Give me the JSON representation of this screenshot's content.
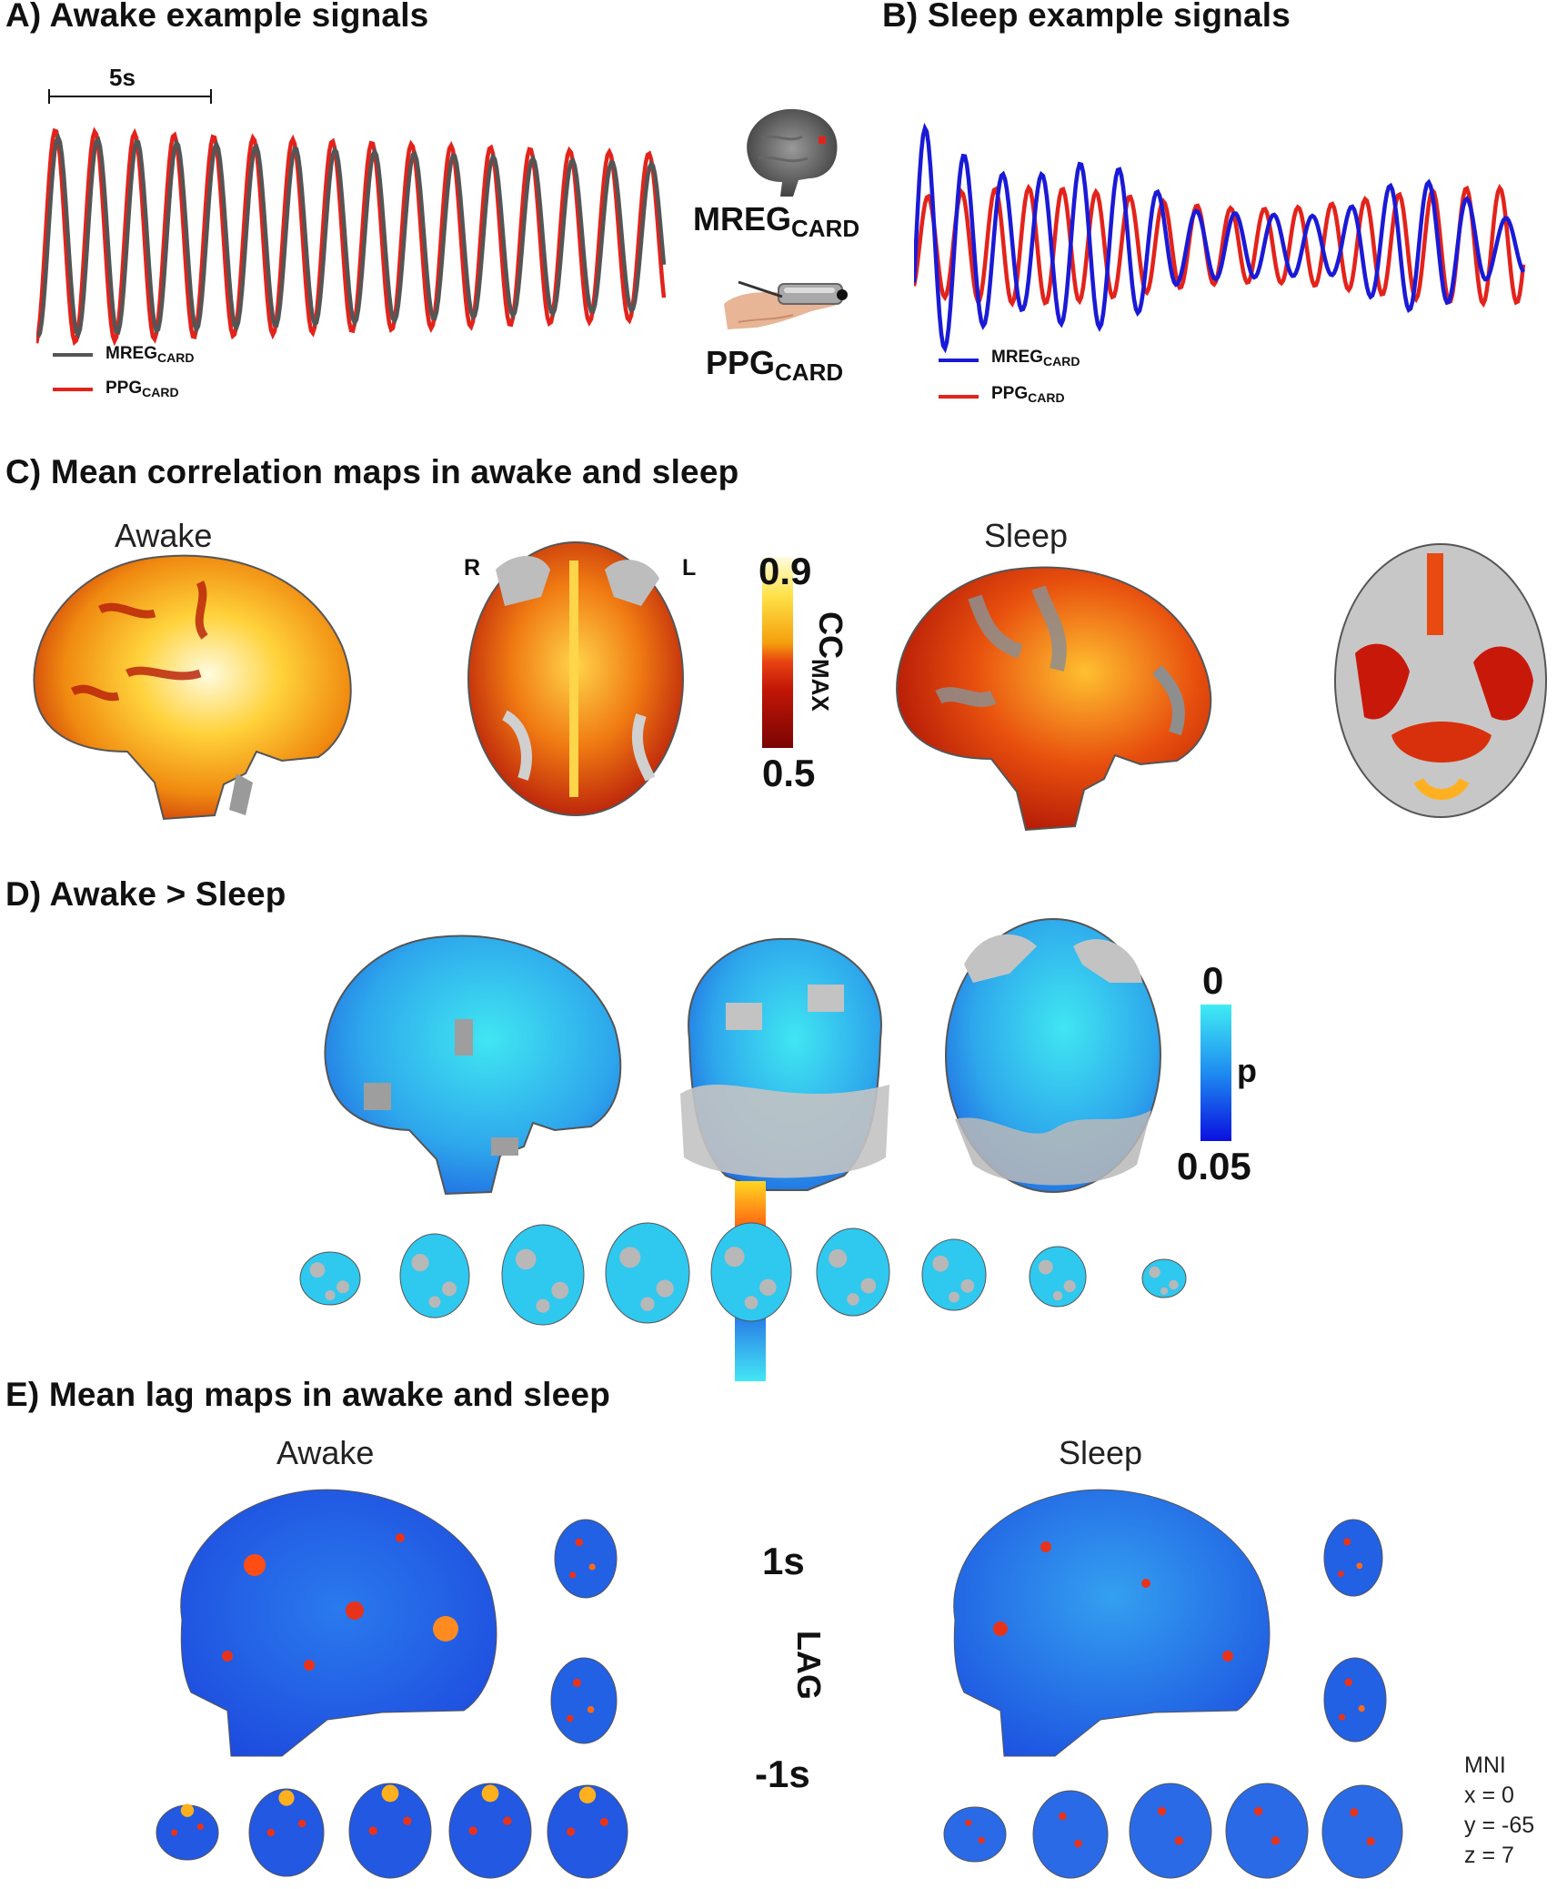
{
  "panels": {
    "a": {
      "title": "A) Awake example signals",
      "scale_label": "5s",
      "legend": [
        {
          "name": "MREG",
          "sub": "CARD",
          "color": "#555555"
        },
        {
          "name": "PPG",
          "sub": "CARD",
          "color": "#e3231b"
        }
      ]
    },
    "b": {
      "title": "B) Sleep example signals",
      "legend": [
        {
          "name": "MREG",
          "sub": "CARD",
          "color": "#1a1ad6"
        },
        {
          "name": "PPG",
          "sub": "CARD",
          "color": "#e3231b"
        }
      ]
    },
    "middle": {
      "mreg": {
        "name": "MREG",
        "sub": "CARD"
      },
      "ppg": {
        "name": "PPG",
        "sub": "CARD"
      }
    },
    "c": {
      "title": "C) Mean correlation maps in awake and sleep",
      "awake_label": "Awake",
      "sleep_label": "Sleep",
      "r_label": "R",
      "l_label": "L",
      "cbar": {
        "max": "0.9",
        "min": "0.5",
        "title": "CC",
        "title_sub": "MAX"
      }
    },
    "d": {
      "title": "D) Awake > Sleep",
      "cbar": {
        "max": "0",
        "min": "0.05",
        "title": "p"
      }
    },
    "e": {
      "title": "E) Mean lag maps in awake and sleep",
      "awake_label": "Awake",
      "sleep_label": "Sleep",
      "cbar": {
        "max": "1s",
        "min": "-1s",
        "title": "LAG"
      }
    },
    "mni": {
      "label": "MNI",
      "x": "x = 0",
      "y": "y = -65",
      "z": "z = 7"
    }
  },
  "colors": {
    "mreg_awake": "#555555",
    "mreg_sleep": "#1a1ad6",
    "ppg": "#e3231b",
    "brain_gray": "#b9b9b9",
    "hot_dark": "#9c0a05",
    "hot_mid": "#e2430f",
    "hot_light": "#fff4b0",
    "p_blue_light": "#3fe0ef",
    "p_blue_dark": "#1020e8",
    "lag_blue": "#2360e8",
    "lag_red": "#e43418",
    "lag_yellow": "#ffd21f"
  },
  "icons": [
    "brain-thumbnail-icon",
    "finger-ppg-sensor-icon"
  ]
}
